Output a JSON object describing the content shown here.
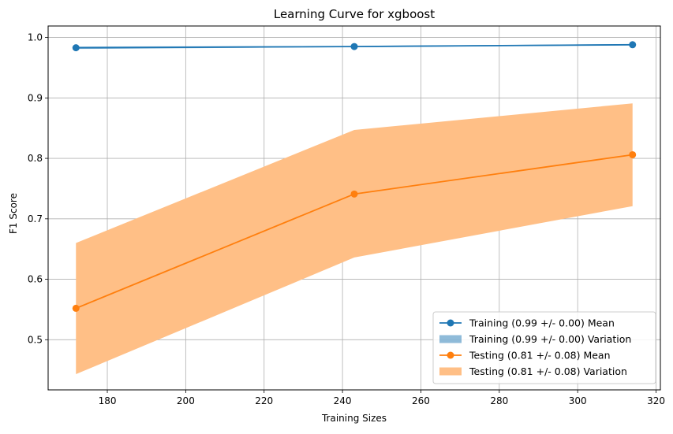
{
  "chart_data": {
    "type": "line",
    "title": "Learning Curve for xgboost",
    "xlabel": "Training Sizes",
    "ylabel": "F1 Score",
    "xlim": [
      164.9,
      321.1
    ],
    "ylim": [
      0.417,
      1.019
    ],
    "xticks": [
      180,
      200,
      220,
      240,
      260,
      280,
      300,
      320
    ],
    "yticks": [
      0.5,
      0.6,
      0.7,
      0.8,
      0.9,
      1.0
    ],
    "grid": true,
    "legend_position": "lower-right",
    "x": [
      172,
      243,
      314
    ],
    "series": [
      {
        "name": "Training (0.99 +/- 0.00) Mean",
        "band_name": "Training (0.99 +/- 0.00) Variation",
        "color": "#1f77b4",
        "band_color": "#1f77b4",
        "mean": [
          0.983,
          0.985,
          0.988
        ],
        "lower": [
          0.981,
          0.984,
          0.987
        ],
        "upper": [
          0.985,
          0.986,
          0.989
        ]
      },
      {
        "name": "Testing (0.81 +/- 0.08) Mean",
        "band_name": "Testing (0.81 +/- 0.08) Variation",
        "color": "#ff7f0e",
        "band_color": "#ffbf86",
        "mean": [
          0.552,
          0.741,
          0.806
        ],
        "lower": [
          0.443,
          0.636,
          0.721
        ],
        "upper": [
          0.66,
          0.847,
          0.891
        ]
      }
    ]
  }
}
